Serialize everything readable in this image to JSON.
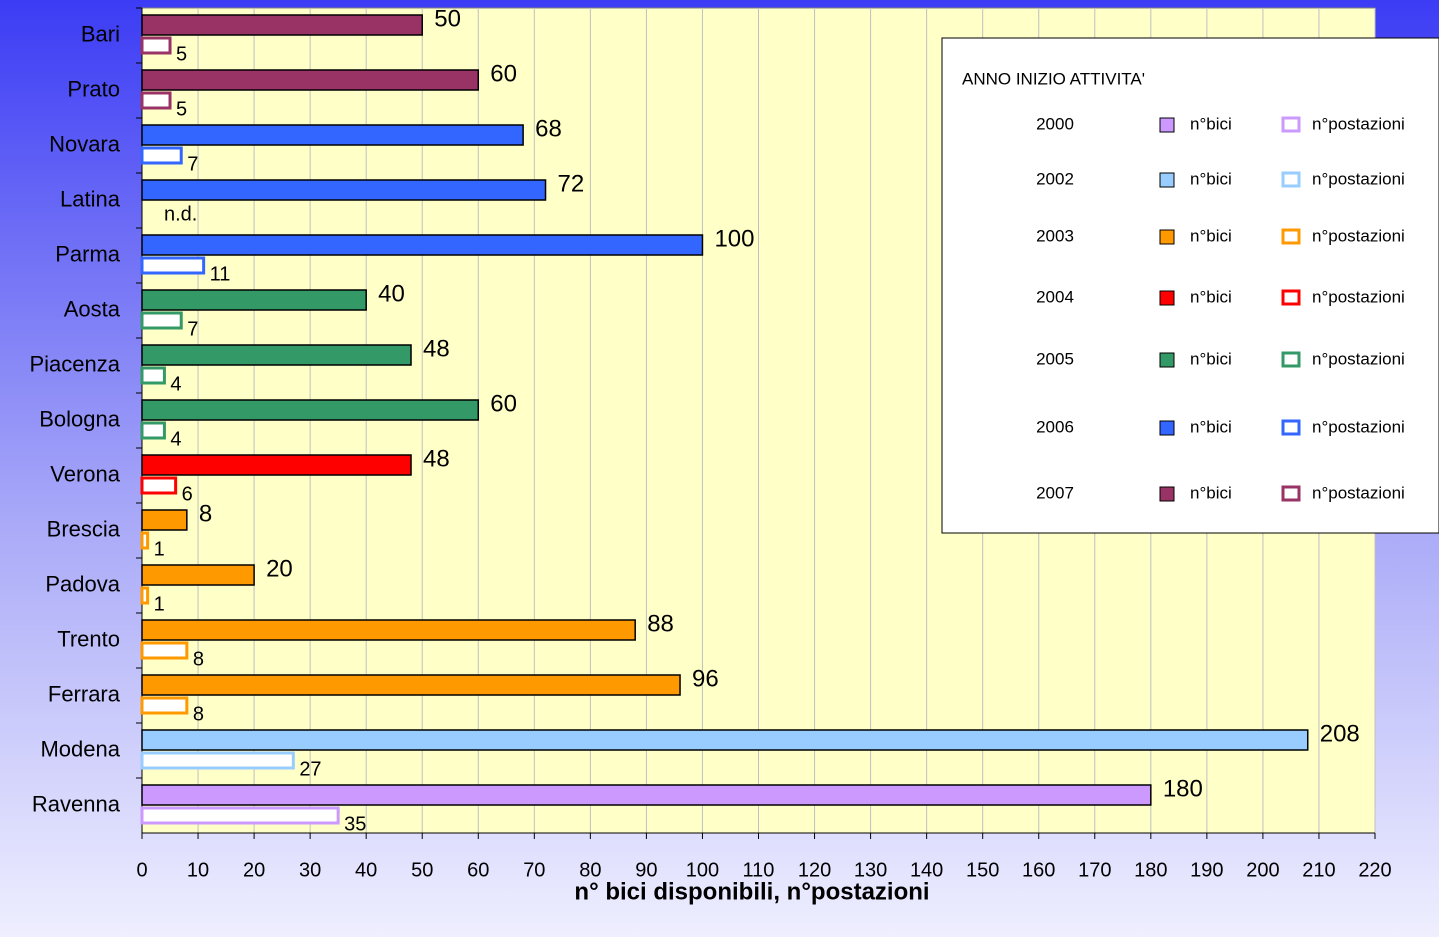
{
  "chart_data": {
    "type": "bar",
    "orientation": "horizontal",
    "categories": [
      "Bari",
      "Prato",
      "Novara",
      "Latina",
      "Parma",
      "Aosta",
      "Piacenza",
      "Bologna",
      "Verona",
      "Brescia",
      "Padova",
      "Trento",
      "Ferrara",
      "Modena",
      "Ravenna"
    ],
    "colors": [
      "#993366",
      "#993366",
      "#3366ff",
      "#3366ff",
      "#3366ff",
      "#339966",
      "#339966",
      "#339966",
      "#ff0000",
      "#ff9900",
      "#ff9900",
      "#ff9900",
      "#ff9900",
      "#99ccff",
      "#cc99ff"
    ],
    "series": [
      {
        "name": "n°bici",
        "values": [
          50,
          60,
          68,
          72,
          100,
          40,
          48,
          60,
          48,
          8,
          20,
          88,
          96,
          208,
          180
        ]
      },
      {
        "name": "n°postazioni",
        "values": [
          5,
          5,
          7,
          null,
          11,
          7,
          4,
          4,
          6,
          1,
          1,
          8,
          8,
          27,
          35
        ],
        "value_labels": [
          "5",
          "5",
          "7",
          "n.d.",
          "11",
          "7",
          "4",
          "4",
          "6",
          "1",
          "1",
          "8",
          "8",
          "27",
          "35"
        ]
      }
    ],
    "xlabel": "n° bici disponibili, n°postazioni",
    "xlim": [
      0,
      220
    ],
    "xticks": [
      0,
      10,
      20,
      30,
      40,
      50,
      60,
      70,
      80,
      90,
      100,
      110,
      120,
      130,
      140,
      150,
      160,
      170,
      180,
      190,
      200,
      210,
      220
    ],
    "grid": true,
    "legend": {
      "title": "ANNO INIZIO ATTIVITA'",
      "position": "upper right",
      "entries": [
        {
          "year": "2000",
          "color": "#cc99ff"
        },
        {
          "year": "2002",
          "color": "#99ccff"
        },
        {
          "year": "2003",
          "color": "#ff9900"
        },
        {
          "year": "2004",
          "color": "#ff0000"
        },
        {
          "year": "2005",
          "color": "#339966"
        },
        {
          "year": "2006",
          "color": "#3366ff"
        },
        {
          "year": "2007",
          "color": "#993366"
        }
      ]
    }
  }
}
